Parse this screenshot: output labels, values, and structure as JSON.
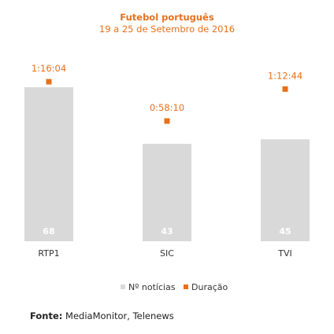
{
  "chart_data": {
    "type": "bar",
    "title": "Futebol português",
    "subtitle": "19 a 25 de Setembro de 2016",
    "categories": [
      "RTP1",
      "SIC",
      "TVI"
    ],
    "series": [
      {
        "name": "Nº notícias",
        "kind": "bar",
        "values": [
          68,
          43,
          45
        ],
        "labels": [
          "68",
          "43",
          "45"
        ],
        "color": "#d9d9d9"
      },
      {
        "name": "Duração",
        "kind": "marker",
        "values": [
          "1:16:04",
          "0:58:10",
          "1:12:44"
        ],
        "labels": [
          "1:16:04",
          "0:58:10",
          "1:12:44"
        ],
        "color": "#e8701a"
      }
    ],
    "legend_position": "bottom",
    "grid": false
  },
  "colors": {
    "accent": "#e8701a",
    "bar": "#d9d9d9",
    "bar_label": "#ffffff",
    "text": "#333333"
  },
  "source": {
    "label": "Fonte:",
    "text": "MediaMonitor, Telenews"
  }
}
